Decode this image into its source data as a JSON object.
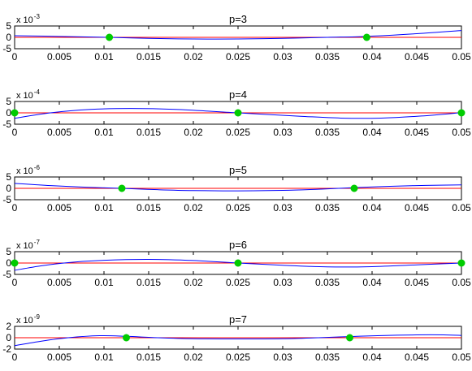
{
  "chart_data": [
    {
      "type": "line",
      "title": "p=3",
      "y_scale_base": "x 10",
      "y_scale_exponent": "-3",
      "xlim": [
        0,
        0.05
      ],
      "ylim": [
        -5,
        5
      ],
      "x_ticks": [
        "0",
        "0.005",
        "0.01",
        "0.015",
        "0.02",
        "0.025",
        "0.03",
        "0.035",
        "0.04",
        "0.045",
        "0.05"
      ],
      "y_ticks": [
        "-5",
        "0",
        "5"
      ],
      "series": [
        {
          "color": "#0000ff",
          "x": [
            0,
            0.005,
            0.0106,
            0.015,
            0.02,
            0.025,
            0.03,
            0.035,
            0.0394,
            0.045,
            0.05
          ],
          "y": [
            0.7,
            0.42,
            0,
            -0.45,
            -0.72,
            -0.72,
            -0.45,
            0,
            0.42,
            1.6,
            3.0
          ]
        },
        {
          "color": "#ff0000",
          "x": [
            0,
            0.05
          ],
          "y": [
            0,
            0
          ]
        }
      ],
      "markers": {
        "color": "#00cc00",
        "x": [
          0.0106,
          0.0394
        ],
        "y": [
          0,
          0
        ]
      }
    },
    {
      "type": "line",
      "title": "p=4",
      "y_scale_base": "x 10",
      "y_scale_exponent": "-4",
      "xlim": [
        0,
        0.05
      ],
      "ylim": [
        -5,
        5
      ],
      "x_ticks": [
        "0",
        "0.005",
        "0.01",
        "0.015",
        "0.02",
        "0.025",
        "0.03",
        "0.035",
        "0.04",
        "0.045",
        "0.05"
      ],
      "y_ticks": [
        "-5",
        "0",
        "5"
      ],
      "series": [
        {
          "color": "#0000ff",
          "x": [
            0,
            0.004,
            0.0085,
            0.013,
            0.018,
            0.025,
            0.032,
            0.0365,
            0.041,
            0.0455,
            0.05
          ],
          "y": [
            -2.4,
            0,
            1.5,
            1.9,
            1.5,
            0,
            -1.5,
            -2.3,
            -2.3,
            -1.4,
            0.1
          ]
        },
        {
          "color": "#ff0000",
          "x": [
            0,
            0.05
          ],
          "y": [
            0,
            0
          ]
        }
      ],
      "markers": {
        "color": "#00cc00",
        "x": [
          0,
          0.025,
          0.05
        ],
        "y": [
          0,
          0,
          0
        ]
      }
    },
    {
      "type": "line",
      "title": "p=5",
      "y_scale_base": "x 10",
      "y_scale_exponent": "-6",
      "xlim": [
        0,
        0.05
      ],
      "ylim": [
        -5,
        5
      ],
      "x_ticks": [
        "0",
        "0.005",
        "0.01",
        "0.015",
        "0.02",
        "0.025",
        "0.03",
        "0.035",
        "0.04",
        "0.045",
        "0.05"
      ],
      "y_ticks": [
        "-5",
        "0",
        "5"
      ],
      "series": [
        {
          "color": "#0000ff",
          "x": [
            0,
            0.004,
            0.008,
            0.012,
            0.016,
            0.02,
            0.025,
            0.03,
            0.034,
            0.038,
            0.042,
            0.046,
            0.05
          ],
          "y": [
            2.2,
            1.2,
            0.5,
            0,
            -0.6,
            -1.0,
            -1.1,
            -0.9,
            -0.4,
            0.3,
            0.9,
            1.3,
            1.5
          ]
        },
        {
          "color": "#ff0000",
          "x": [
            0,
            0.05
          ],
          "y": [
            0,
            0
          ]
        }
      ],
      "markers": {
        "color": "#00cc00",
        "x": [
          0.012,
          0.038
        ],
        "y": [
          0,
          0
        ]
      }
    },
    {
      "type": "line",
      "title": "p=6",
      "y_scale_base": "x 10",
      "y_scale_exponent": "-7",
      "xlim": [
        0,
        0.05
      ],
      "ylim": [
        -5,
        5
      ],
      "x_ticks": [
        "0",
        "0.005",
        "0.01",
        "0.015",
        "0.02",
        "0.025",
        "0.03",
        "0.035",
        "0.04",
        "0.045",
        "0.05"
      ],
      "y_ticks": [
        "-5",
        "0",
        "5"
      ],
      "series": [
        {
          "color": "#0000ff",
          "x": [
            0,
            0.003,
            0.006,
            0.01,
            0.015,
            0.02,
            0.025,
            0.03,
            0.035,
            0.04,
            0.045,
            0.05
          ],
          "y": [
            -3.2,
            -1.2,
            0.2,
            1.2,
            1.6,
            1.1,
            0,
            -1.0,
            -1.7,
            -1.6,
            -0.8,
            0
          ]
        },
        {
          "color": "#ff0000",
          "x": [
            0,
            0.05
          ],
          "y": [
            0,
            0
          ]
        }
      ],
      "markers": {
        "color": "#00cc00",
        "x": [
          0,
          0.025,
          0.05
        ],
        "y": [
          0,
          0,
          0
        ]
      }
    },
    {
      "type": "line",
      "title": "p=7",
      "y_scale_base": "x 10",
      "y_scale_exponent": "-9",
      "xlim": [
        0,
        0.05
      ],
      "ylim": [
        -2,
        2
      ],
      "x_ticks": [
        "0",
        "0.005",
        "0.01",
        "0.015",
        "0.02",
        "0.025",
        "0.03",
        "0.035",
        "0.04",
        "0.045",
        "0.05"
      ],
      "y_ticks": [
        "-2",
        "0",
        "2"
      ],
      "series": [
        {
          "color": "#0000ff",
          "x": [
            0,
            0.003,
            0.006,
            0.0095,
            0.0125,
            0.016,
            0.02,
            0.025,
            0.03,
            0.034,
            0.0375,
            0.041,
            0.045,
            0.048,
            0.05
          ],
          "y": [
            -1.4,
            -0.6,
            0,
            0.35,
            0.25,
            0,
            -0.18,
            -0.22,
            -0.18,
            0,
            0.2,
            0.38,
            0.5,
            0.5,
            0.4
          ]
        },
        {
          "color": "#ff0000",
          "x": [
            0,
            0.05
          ],
          "y": [
            0,
            0
          ]
        }
      ],
      "markers": {
        "color": "#00cc00",
        "x": [
          0.0125,
          0.0375
        ],
        "y": [
          0,
          0
        ]
      }
    }
  ]
}
